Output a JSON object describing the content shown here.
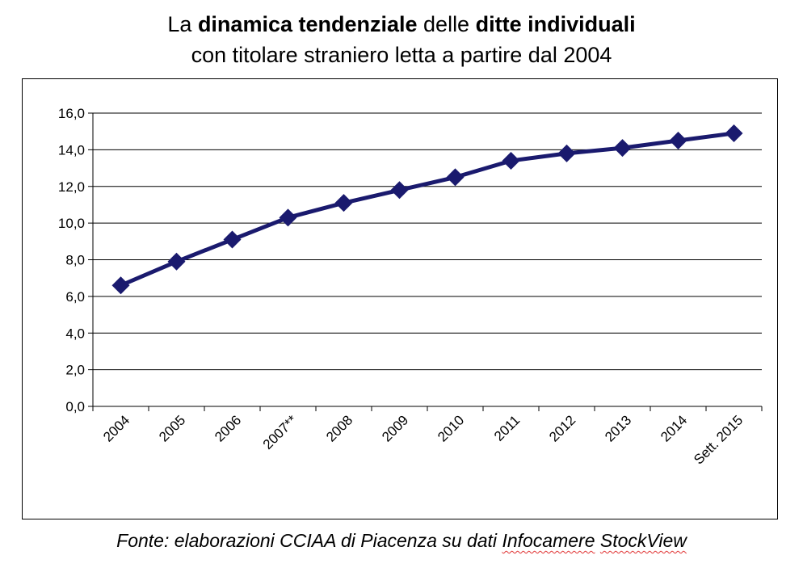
{
  "title": {
    "line1": [
      {
        "text": "La ",
        "bold": false
      },
      {
        "text": "dinamica tendenziale",
        "bold": true
      },
      {
        "text": " delle ",
        "bold": false
      },
      {
        "text": "ditte individuali",
        "bold": true
      }
    ],
    "line2": "con titolare straniero letta a partire dal 2004"
  },
  "source": {
    "prefix": "Fonte: elaborazioni CCIAA di Piacenza su dati ",
    "word1": "Infocamere",
    "space": " ",
    "word2": "StockView"
  },
  "chart_data": {
    "type": "line",
    "categories": [
      "2004",
      "2005",
      "2006",
      "2007**",
      "2008",
      "2009",
      "2010",
      "2011",
      "2012",
      "2013",
      "2014",
      "Sett. 2015"
    ],
    "series": [
      {
        "values": [
          6.6,
          7.9,
          9.1,
          10.3,
          11.1,
          11.8,
          12.5,
          13.4,
          13.8,
          14.1,
          14.5,
          14.9
        ],
        "color": "#1a1a6e"
      }
    ],
    "yticks": [
      "0,0",
      "2,0",
      "4,0",
      "6,0",
      "8,0",
      "10,0",
      "12,0",
      "14,0",
      "16,0"
    ],
    "ylim": [
      0,
      16
    ],
    "grid": true,
    "marker": "diamond",
    "legend": "none"
  }
}
